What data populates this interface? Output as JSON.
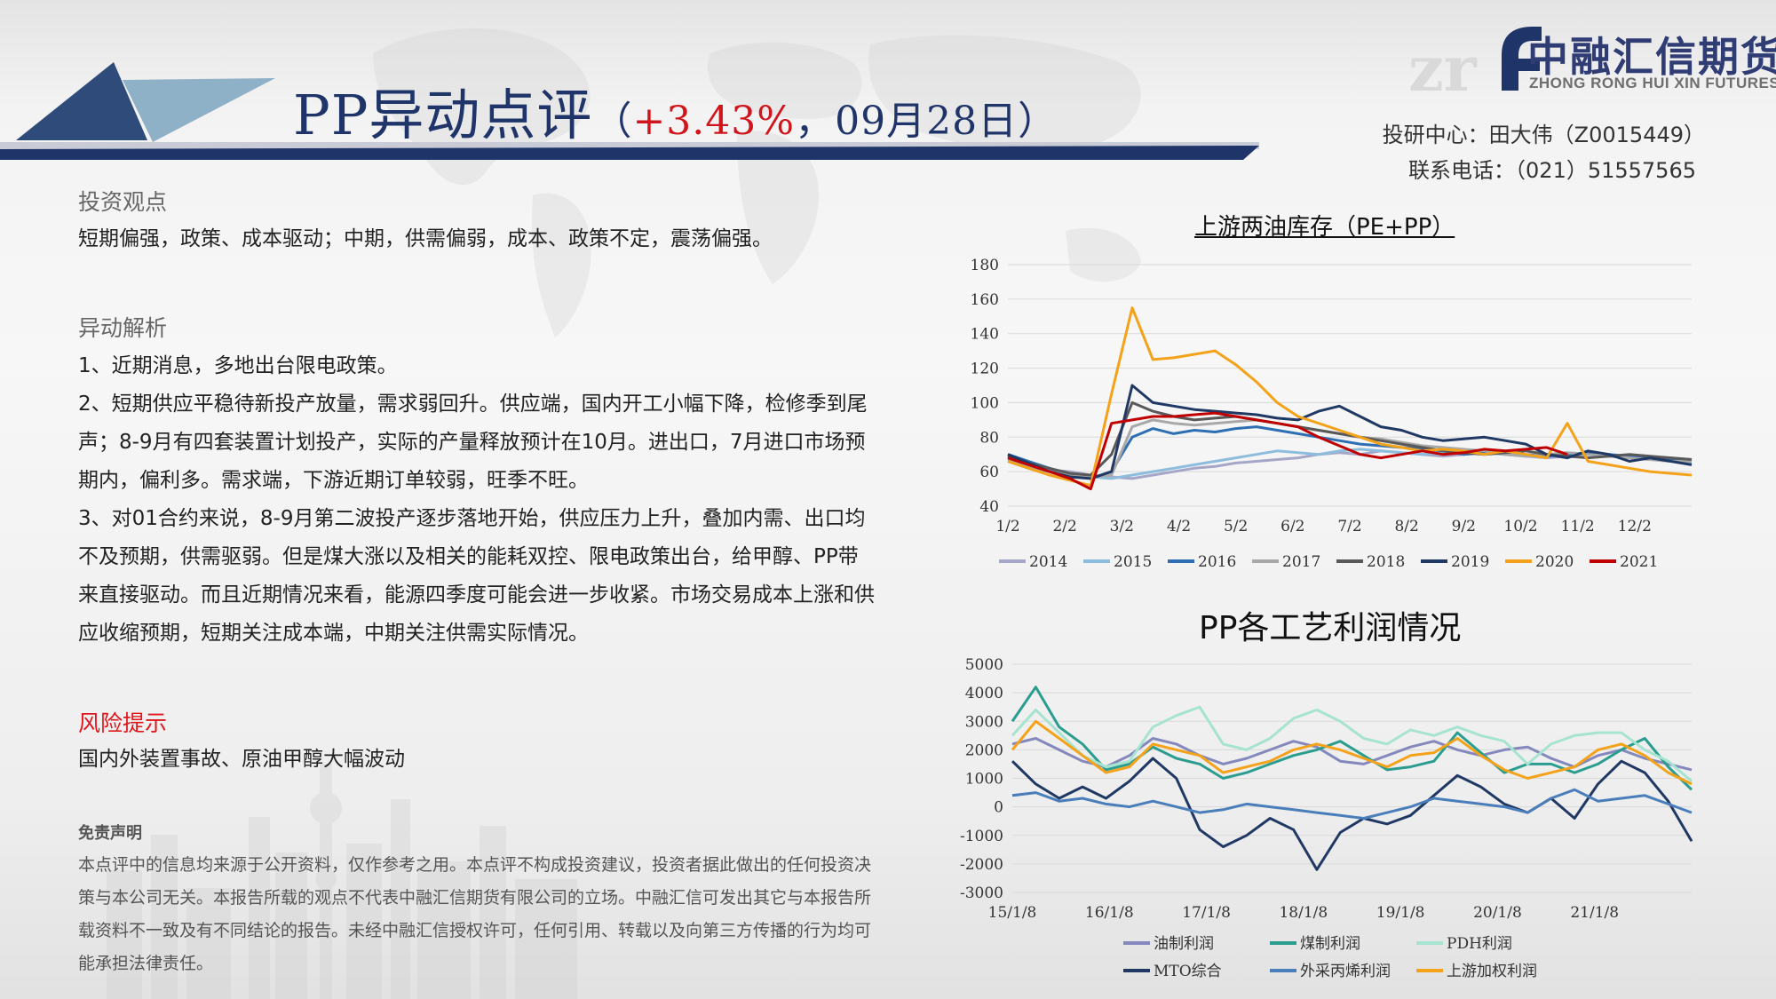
{
  "header": {
    "title_main": "PP异动点评",
    "title_paren_open": "（",
    "title_change": "+3.43%",
    "title_date": "，09月28日",
    "title_paren_close": "）",
    "brand_cn": "中融汇信期货",
    "brand_en": "ZHONG RONG HUI XIN FUTURES",
    "analyst": "投研中心：田大伟（Z0015449）",
    "phone": "联系电话：（021）51557565"
  },
  "investment": {
    "heading": "投资观点",
    "text": "短期偏强，政策、成本驱动；中期，供需偏弱，成本、政策不定，震荡偏强。"
  },
  "analysis": {
    "heading": "异动解析",
    "p1": "1、近期消息，多地出台限电政策。",
    "p2": "2、短期供应平稳待新投产放量，需求弱回升。供应端，国内开工小幅下降，检修季到尾声；8-9月有四套装置计划投产，实际的产量释放预计在10月。进出口，7月进口市场预期内，偏利多。需求端，下游近期订单较弱，旺季不旺。",
    "p3": "3、对01合约来说，8-9月第二波投产逐步落地开始，供应压力上升，叠加内需、出口均不及预期，供需驱弱。但是煤大涨以及相关的能耗双控、限电政策出台，给甲醇、PP带来直接驱动。而且近期情况来看，能源四季度可能会进一步收紧。市场交易成本上涨和供应收缩预期，短期关注成本端，中期关注供需实际情况。"
  },
  "risk": {
    "heading": "风险提示",
    "text": "国内外装置事故、原油甲醇大幅波动"
  },
  "disclaimer": {
    "heading": "免责声明",
    "text": "本点评中的信息均来源于公开资料，仅作参考之用。本点评不构成投资建议，投资者据此做出的任何投资决策与本公司无关。本报告所载的观点不代表中融汇信期货有限公司的立场。中融汇信可发出其它与本报告所载资料不一致及有不同结论的报告。未经中融汇信授权许可，任何引用、转载以及向第三方传播的行为均可能承担法律责任。"
  },
  "chart_data": [
    {
      "type": "line",
      "title": "上游两油库存（PE+PP）",
      "x_ticks": [
        "1/2",
        "2/2",
        "3/2",
        "4/2",
        "5/2",
        "6/2",
        "7/2",
        "8/2",
        "9/2",
        "10/2",
        "11/2",
        "12/2"
      ],
      "ylim": [
        40,
        180
      ],
      "y_ticks": [
        40,
        60,
        80,
        100,
        120,
        140,
        160,
        180
      ],
      "grid": true,
      "legend_position": "bottom",
      "series": [
        {
          "name": "2014",
          "color": "#a6a6c8",
          "values": [
            68,
            64,
            61,
            60,
            58,
            57,
            56,
            58,
            60,
            62,
            63,
            65,
            66,
            67,
            68,
            70,
            71,
            70,
            72,
            71,
            70,
            69,
            70,
            71,
            70,
            69,
            68,
            69,
            70,
            69,
            68,
            67,
            68,
            67
          ]
        },
        {
          "name": "2015",
          "color": "#8dbddc",
          "values": [
            66,
            62,
            60,
            58,
            57,
            56,
            58,
            60,
            62,
            64,
            66,
            68,
            70,
            72,
            71,
            70,
            72,
            73,
            72,
            71,
            70,
            71,
            72,
            71,
            70,
            69,
            70,
            71,
            70,
            69,
            68,
            67,
            66,
            65
          ]
        },
        {
          "name": "2016",
          "color": "#2e6fb4",
          "values": [
            70,
            66,
            62,
            58,
            56,
            60,
            80,
            85,
            82,
            84,
            83,
            85,
            86,
            84,
            82,
            80,
            78,
            76,
            75,
            74,
            73,
            72,
            70,
            71,
            72,
            70,
            69,
            70,
            71,
            70,
            69,
            68,
            67,
            66
          ]
        },
        {
          "name": "2017",
          "color": "#a8a8a8",
          "values": [
            67,
            63,
            60,
            58,
            57,
            58,
            86,
            90,
            88,
            87,
            88,
            89,
            90,
            88,
            86,
            84,
            82,
            80,
            79,
            77,
            75,
            74,
            73,
            72,
            70,
            69,
            70,
            71,
            70,
            69,
            68,
            67,
            66,
            66
          ]
        },
        {
          "name": "2018",
          "color": "#595959",
          "values": [
            69,
            65,
            62,
            59,
            58,
            70,
            100,
            95,
            92,
            90,
            91,
            92,
            90,
            88,
            86,
            84,
            82,
            80,
            78,
            76,
            74,
            72,
            71,
            70,
            71,
            72,
            70,
            69,
            68,
            69,
            70,
            69,
            68,
            67
          ]
        },
        {
          "name": "2019",
          "color": "#203864",
          "values": [
            70,
            65,
            60,
            57,
            56,
            60,
            110,
            100,
            98,
            96,
            95,
            94,
            93,
            91,
            90,
            95,
            98,
            92,
            86,
            84,
            80,
            78,
            79,
            80,
            78,
            76,
            70,
            68,
            72,
            70,
            66,
            68,
            66,
            64
          ]
        },
        {
          "name": "2020",
          "color": "#f4a21a",
          "values": [
            66,
            62,
            58,
            55,
            52,
            105,
            155,
            125,
            126,
            128,
            130,
            122,
            112,
            100,
            92,
            88,
            84,
            80,
            76,
            74,
            72,
            73,
            72,
            70,
            72,
            70,
            68,
            88,
            66,
            64,
            62,
            60,
            59,
            58
          ]
        },
        {
          "name": "2021",
          "color": "#c00000",
          "values": [
            68,
            64,
            60,
            56,
            50,
            88,
            90,
            92,
            92,
            93,
            94,
            92,
            90,
            88,
            86,
            80,
            75,
            70,
            68,
            70,
            72,
            70,
            71,
            73,
            72,
            73,
            74,
            70
          ]
        }
      ]
    },
    {
      "type": "line",
      "title": "PP各工艺利润情况",
      "x_ticks": [
        "15/1/8",
        "16/1/8",
        "17/1/8",
        "18/1/8",
        "19/1/8",
        "20/1/8",
        "21/1/8"
      ],
      "ylim": [
        -3000,
        5000
      ],
      "y_ticks": [
        -3000,
        -2000,
        -1000,
        0,
        1000,
        2000,
        3000,
        4000,
        5000
      ],
      "grid": true,
      "legend_position": "bottom",
      "series": [
        {
          "name": "油制利润",
          "color": "#8488bd",
          "values": [
            2200,
            2400,
            2000,
            1600,
            1400,
            1800,
            2400,
            2200,
            1800,
            1500,
            1700,
            2000,
            2300,
            2100,
            1600,
            1500,
            1800,
            2100,
            2300,
            2000,
            1800,
            2000,
            2100,
            1700,
            1400,
            1800,
            2000,
            1700,
            1500,
            1300
          ]
        },
        {
          "name": "煤制利润",
          "color": "#2a9d8f",
          "values": [
            3000,
            4200,
            2800,
            2200,
            1300,
            1500,
            2100,
            1700,
            1500,
            1000,
            1200,
            1500,
            1800,
            2000,
            2300,
            1800,
            1300,
            1400,
            1600,
            2600,
            1900,
            1200,
            1500,
            1500,
            1200,
            1500,
            2000,
            2400,
            1400,
            600
          ]
        },
        {
          "name": "PDH利润",
          "color": "#a6e3d1",
          "values": [
            2500,
            3400,
            2600,
            1800,
            1400,
            1600,
            2800,
            3200,
            3500,
            2200,
            2000,
            2400,
            3100,
            3400,
            3000,
            2400,
            2200,
            2700,
            2500,
            2800,
            2500,
            2300,
            1500,
            2200,
            2500,
            2600,
            2600,
            2000,
            1600,
            900
          ]
        },
        {
          "name": "MTO综合",
          "color": "#203864",
          "values": [
            1600,
            800,
            300,
            700,
            300,
            900,
            1700,
            1000,
            -800,
            -1400,
            -1000,
            -400,
            -800,
            -2200,
            -900,
            -400,
            -600,
            -300,
            400,
            1100,
            700,
            100,
            -200,
            300,
            -400,
            800,
            1600,
            1200,
            200,
            -1200
          ]
        },
        {
          "name": "外采丙烯利润",
          "color": "#4a7ebb",
          "values": [
            400,
            500,
            200,
            300,
            100,
            0,
            200,
            0,
            -200,
            -100,
            100,
            0,
            -100,
            -200,
            -300,
            -400,
            -200,
            0,
            300,
            200,
            100,
            0,
            -200,
            300,
            600,
            200,
            300,
            400,
            100,
            -200
          ]
        },
        {
          "name": "上游加权利润",
          "color": "#f4a21a",
          "values": [
            2000,
            3000,
            2400,
            1800,
            1200,
            1400,
            2200,
            2000,
            1800,
            1200,
            1400,
            1600,
            2000,
            2200,
            2000,
            1700,
            1400,
            1800,
            1900,
            2400,
            1800,
            1300,
            1000,
            1200,
            1400,
            2000,
            2200,
            1800,
            1200,
            800
          ]
        }
      ]
    }
  ]
}
